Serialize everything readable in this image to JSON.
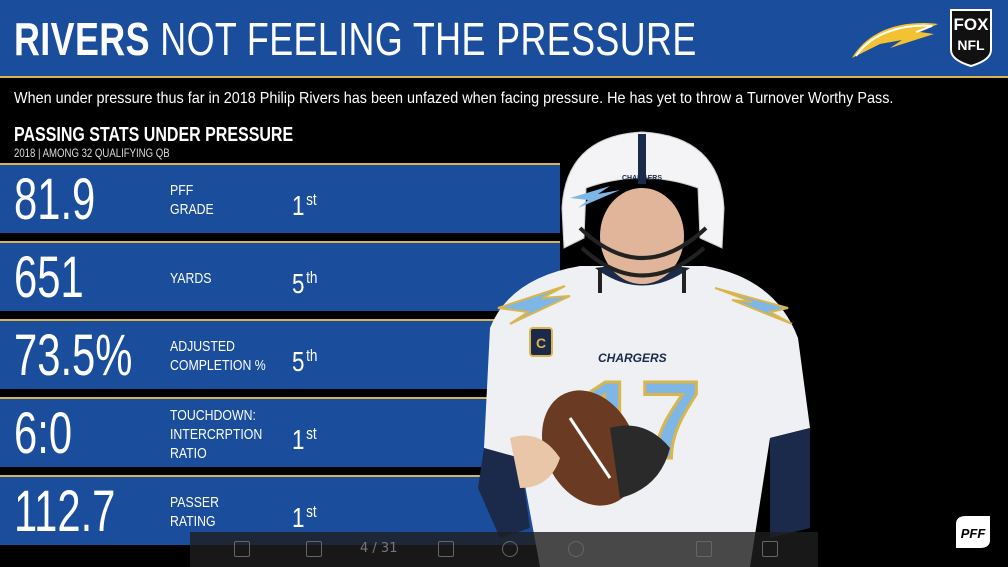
{
  "header": {
    "title_bold": "RIVERS",
    "title_rest": "NOT FEELING THE PRESSURE",
    "network_top": "FOX",
    "network_bottom": "NFL"
  },
  "subtitle": "When under pressure thus far in 2018 Philip Rivers has been unfazed when facing pressure. He has yet to throw a Turnover Worthy Pass.",
  "section": {
    "title": "PASSING STATS UNDER PRESSURE",
    "subtitle": "2018 | AMONG 32 QUALIFYING QB"
  },
  "stats": [
    {
      "value": "81.9",
      "label_lines": [
        "PFF",
        "GRADE"
      ],
      "rank_num": "1",
      "rank_suffix": "st"
    },
    {
      "value": "651",
      "label_lines": [
        "YARDS"
      ],
      "rank_num": "5",
      "rank_suffix": "th"
    },
    {
      "value": "73.5%",
      "label_lines": [
        "ADJUSTED",
        "COMPLETION %"
      ],
      "rank_num": "5",
      "rank_suffix": "th"
    },
    {
      "value": "6:0",
      "label_lines": [
        "TOUCHDOWN:",
        "INTERCRPTION",
        "RATIO"
      ],
      "rank_num": "1",
      "rank_suffix": "st"
    },
    {
      "value": "112.7",
      "label_lines": [
        "PASSER",
        "RATING"
      ],
      "rank_num": "1",
      "rank_suffix": "st"
    }
  ],
  "player": {
    "jersey_number": "17",
    "team_wordmark": "CHARGERS",
    "helmet_wordmark": "CHARGERS",
    "captain_patch": "C"
  },
  "branding": {
    "pff_logo": "PFF"
  },
  "viewer_toolbar": {
    "current_page": "4",
    "total_pages": "/ 31"
  },
  "colors": {
    "chargers_blue": "#1a4d9c",
    "gold": "#d9b64c",
    "powder_blue": "#7eb6e6",
    "background": "#000000"
  },
  "icons": [
    "chargers-bolt-icon",
    "fox-nfl-shield-icon",
    "pff-logo-icon",
    "sidebar-toggle-icon",
    "page-up-icon",
    "page-down-icon",
    "zoom-out-icon",
    "zoom-in-icon",
    "fit-page-icon",
    "fullscreen-icon"
  ]
}
